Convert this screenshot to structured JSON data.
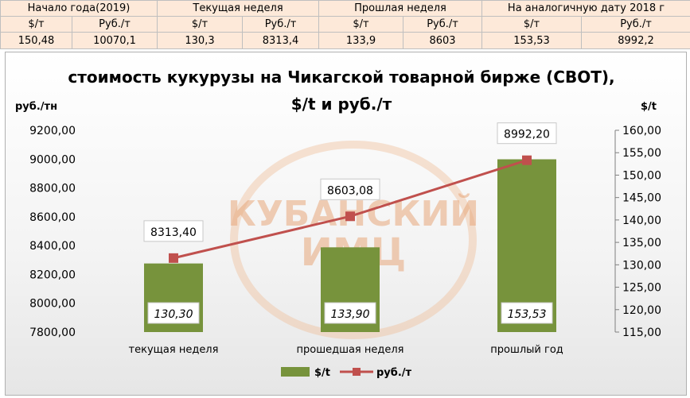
{
  "table": {
    "headers": [
      "Начало года(2019)",
      "Текущая неделя",
      "Прошлая неделя",
      "На аналогичную дату 2018 г"
    ],
    "units": [
      "$/т",
      "Руб./т",
      "$/т",
      "Руб./т",
      "$/т",
      "Руб./т",
      "$/т",
      "Руб./т"
    ],
    "values": [
      "150,48",
      "10070,1",
      "130,3",
      "8313,4",
      "133,9",
      "8603",
      "153,53",
      "8992,2"
    ]
  },
  "watermark": {
    "line1": "КУБАНСКИЙ",
    "line2": "ИМЦ"
  },
  "chart_data": {
    "type": "bar+line",
    "title_line1": "стоимость кукурузы на Чикагской товарной бирже (CBOT),",
    "title_line2": "$/t и руб./т",
    "y_left_label": "руб./тн",
    "y_right_label": "$/t",
    "categories": [
      "текущая неделя",
      "прошедшая неделя",
      "прошлый год"
    ],
    "y_left": {
      "min": 7800,
      "max": 9200,
      "step": 200,
      "tick_labels": [
        "7800,00",
        "8000,00",
        "8200,00",
        "8400,00",
        "8600,00",
        "8800,00",
        "9000,00",
        "9200,00"
      ]
    },
    "y_right": {
      "min": 115,
      "max": 160,
      "step": 5,
      "tick_labels": [
        "115,00",
        "120,00",
        "125,00",
        "130,00",
        "135,00",
        "140,00",
        "145,00",
        "150,00",
        "155,00",
        "160,00"
      ]
    },
    "series": [
      {
        "name": "$/t",
        "type": "bar",
        "axis": "right",
        "color": "#77933c",
        "values": [
          130.3,
          133.9,
          153.53
        ],
        "labels": [
          "130,30",
          "133,90",
          "153,53"
        ]
      },
      {
        "name": "руб./т",
        "type": "line",
        "axis": "left",
        "color": "#c0504d",
        "values": [
          8313.4,
          8603.08,
          8992.2
        ],
        "labels": [
          "8313,40",
          "8603,08",
          "8992,20"
        ]
      }
    ],
    "legend_position": "bottom",
    "grid": false
  }
}
